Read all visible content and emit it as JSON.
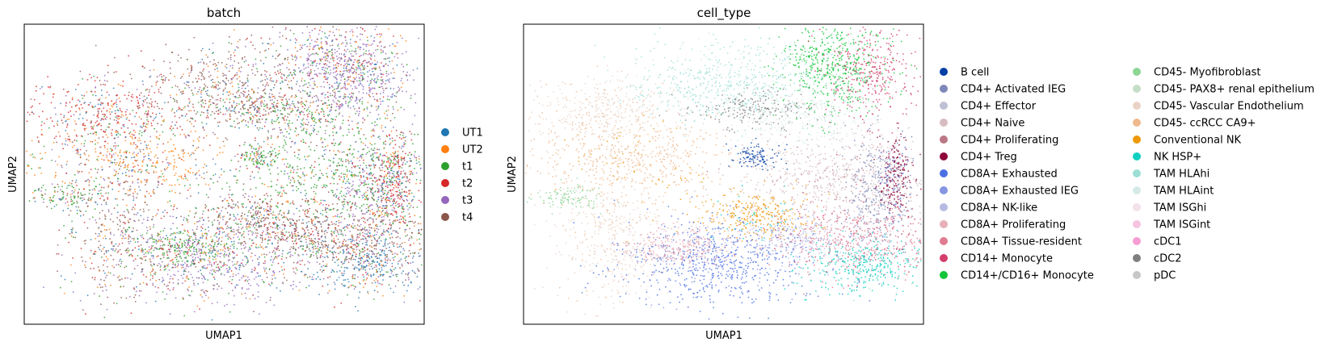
{
  "chart_data": [
    {
      "type": "scatter",
      "title": "batch",
      "xlabel": "UMAP1",
      "ylabel": "UMAP2",
      "grid": false,
      "axis_ticks": false,
      "legend_position": "right",
      "series": [
        {
          "name": "UT1",
          "color": "#1f77b4"
        },
        {
          "name": "UT2",
          "color": "#ff7f0e"
        },
        {
          "name": "t1",
          "color": "#2ca02c"
        },
        {
          "name": "t2",
          "color": "#d62728"
        },
        {
          "name": "t3",
          "color": "#9467bd"
        },
        {
          "name": "t4",
          "color": "#8c564b"
        }
      ]
    },
    {
      "type": "scatter",
      "title": "cell_type",
      "xlabel": "UMAP1",
      "ylabel": "UMAP2",
      "grid": false,
      "axis_ticks": false,
      "legend_position": "right",
      "series": [
        {
          "name": "B cell",
          "color": "#023fa5"
        },
        {
          "name": "CD4+ Activated IEG",
          "color": "#7d87b9"
        },
        {
          "name": "CD4+ Effector",
          "color": "#bec1d4"
        },
        {
          "name": "CD4+ Naive",
          "color": "#d6bcc0"
        },
        {
          "name": "CD4+ Proliferating",
          "color": "#bb7784"
        },
        {
          "name": "CD4+ Treg",
          "color": "#8e063b"
        },
        {
          "name": "CD8A+ Exhausted",
          "color": "#4a6fe3"
        },
        {
          "name": "CD8A+ Exhausted IEG",
          "color": "#8595e1"
        },
        {
          "name": "CD8A+ NK-like",
          "color": "#b5bbe3"
        },
        {
          "name": "CD8A+ Proliferating",
          "color": "#e6afb9"
        },
        {
          "name": "CD8A+ Tissue-resident",
          "color": "#e07b91"
        },
        {
          "name": "CD14+ Monocyte",
          "color": "#d33f6a"
        },
        {
          "name": "CD14+/CD16+ Monocyte",
          "color": "#11c638"
        },
        {
          "name": "CD45- Myofibroblast",
          "color": "#8dd593"
        },
        {
          "name": "CD45- PAX8+ renal epithelium",
          "color": "#c6dec7"
        },
        {
          "name": "CD45- Vascular Endothelium",
          "color": "#ead3c6"
        },
        {
          "name": "CD45- ccRCC CA9+",
          "color": "#f0b98d"
        },
        {
          "name": "Conventional NK",
          "color": "#ef9708"
        },
        {
          "name": "NK HSP+",
          "color": "#0fcfc0"
        },
        {
          "name": "TAM HLAhi",
          "color": "#9cded6"
        },
        {
          "name": "TAM HLAint",
          "color": "#d5eae7"
        },
        {
          "name": "TAM ISGhi",
          "color": "#f3e1eb"
        },
        {
          "name": "TAM ISGint",
          "color": "#f6c4e1"
        },
        {
          "name": "cDC1",
          "color": "#f79cd4"
        },
        {
          "name": "cDC2",
          "color": "#7f7f7f"
        },
        {
          "name": "pDC",
          "color": "#c7c7c7"
        }
      ]
    }
  ]
}
